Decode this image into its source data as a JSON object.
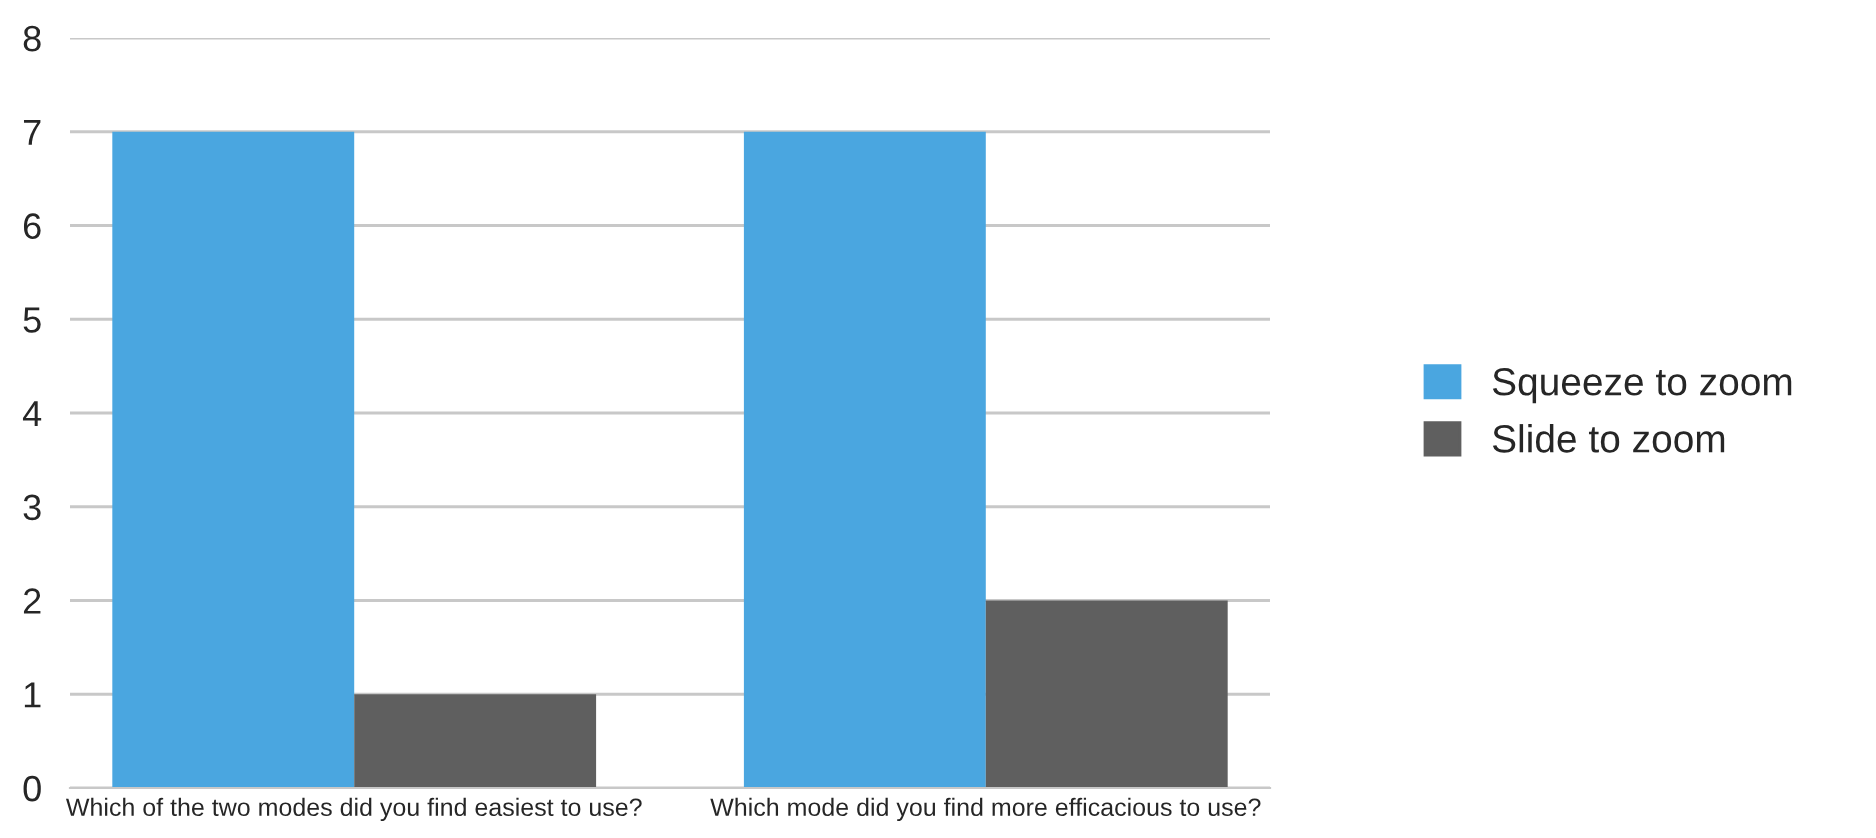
{
  "chart_data": {
    "type": "bar",
    "categories": [
      "Which of the two modes did you find easiest to use?",
      "Which mode did you find more efficacious to use?"
    ],
    "series": [
      {
        "name": "Squeeze to zoom",
        "color": "#4aa6e0",
        "values": [
          7,
          7
        ]
      },
      {
        "name": "Slide to zoom",
        "color": "#5f5f5f",
        "values": [
          1,
          2
        ]
      }
    ],
    "ylim": [
      0,
      8
    ],
    "yticks": [
      0,
      1,
      2,
      3,
      4,
      5,
      6,
      7,
      8
    ],
    "grid": "y",
    "legend": "right"
  }
}
